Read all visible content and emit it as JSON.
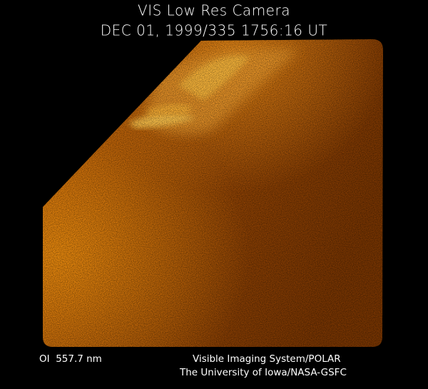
{
  "header": {
    "title": "VIS Low Res Camera",
    "timestamp": "DEC 01, 1999/335 1756:16 UT"
  },
  "footer": {
    "wavelength": "OI  557.7 nm",
    "credit_line_1": "Visible Imaging System/POLAR",
    "credit_line_2": "The University of Iowa/NASA-GSFC"
  }
}
